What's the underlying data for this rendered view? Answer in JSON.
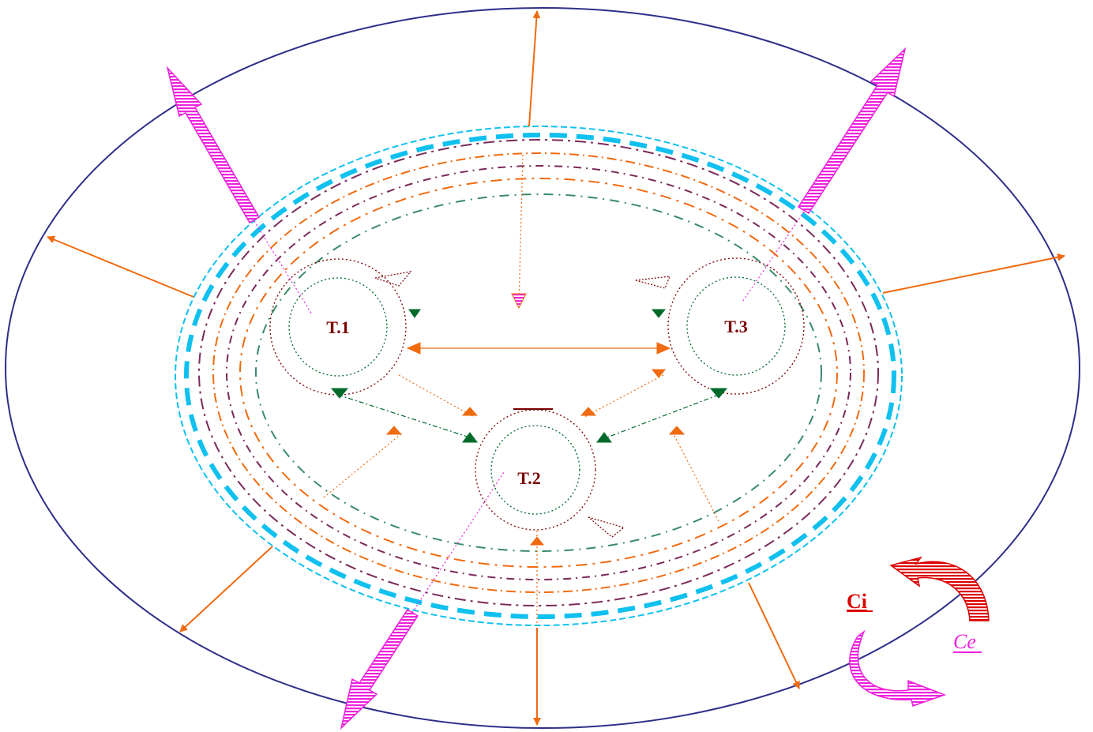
{
  "nodes": [
    {
      "id": "t1",
      "label": "T.1"
    },
    {
      "id": "t2",
      "label": "T.2"
    },
    {
      "id": "t3",
      "label": "T.3"
    }
  ],
  "legend": {
    "ci": {
      "label": "Ci",
      "color": "#dd0000"
    },
    "ce": {
      "label": "Ce",
      "color": "#ee22dd"
    }
  },
  "colors": {
    "outer_ellipse": "#2e2e8a",
    "cyan_boundary": "#10c0ee",
    "orange": "#f06a10",
    "magenta": "#ee22dd",
    "dark_red": "#7a0000",
    "dark_green": "#006a2a",
    "purple": "#7a2a5a",
    "teal": "#3a8a6a"
  }
}
